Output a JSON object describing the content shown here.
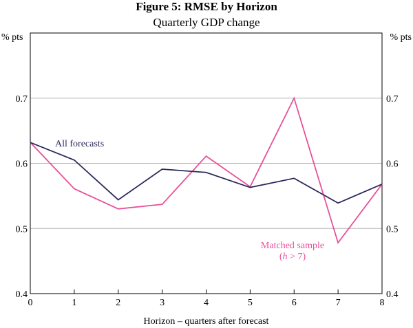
{
  "chart_data": {
    "type": "line",
    "title": "Figure 5: RMSE by Horizon",
    "subtitle": "Quarterly GDP change",
    "xlabel": "Horizon – quarters after forecast",
    "ylabel_left": "% pts",
    "ylabel_right": "% pts",
    "x": [
      0,
      1,
      2,
      3,
      4,
      5,
      6,
      7,
      8
    ],
    "xlim": [
      0,
      8
    ],
    "ylim": [
      0.4,
      0.8
    ],
    "yticks": [
      "0.4",
      "0.5",
      "0.6",
      "0.7"
    ],
    "ytick_values": [
      0.4,
      0.5,
      0.6,
      0.7
    ],
    "grid": true,
    "series": [
      {
        "name": "All forecasts",
        "label": "All forecasts",
        "color": "#2b2a5c",
        "values": [
          0.632,
          0.605,
          0.544,
          0.591,
          0.586,
          0.563,
          0.577,
          0.539,
          0.568
        ]
      },
      {
        "name": "Matched sample (h > 7)",
        "label": "Matched sample",
        "label_sub_var": "h",
        "label_sub_rest": " > 7)",
        "label_sub_open": "(",
        "color": "#e8509a",
        "values": [
          0.632,
          0.561,
          0.53,
          0.537,
          0.611,
          0.564,
          0.7,
          0.478,
          0.568
        ]
      }
    ]
  }
}
